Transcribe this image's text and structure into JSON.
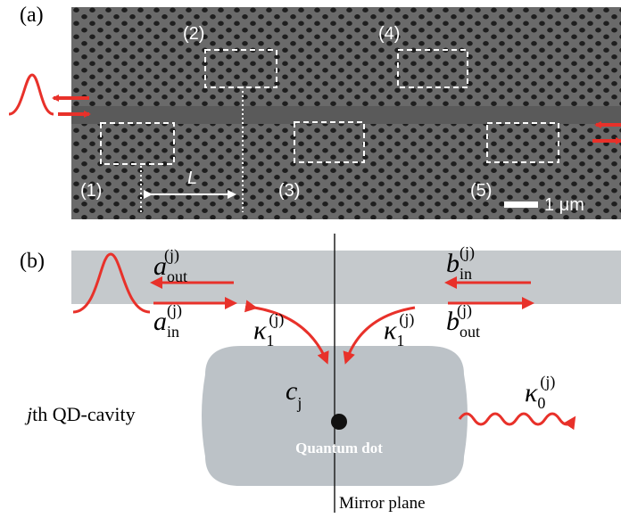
{
  "panel_a": {
    "label": "(a)",
    "regions": [
      "(1)",
      "(2)",
      "(3)",
      "(4)",
      "(5)"
    ],
    "length_label": "L",
    "scale_bar": "1 μm"
  },
  "panel_b": {
    "label": "(b)",
    "a_out": {
      "base": "a",
      "sub": "out",
      "sup": "(j)"
    },
    "a_in": {
      "base": "a",
      "sub": "in",
      "sup": "(j)"
    },
    "b_in": {
      "base": "b",
      "sub": "in",
      "sup": "(j)"
    },
    "b_out": {
      "base": "b",
      "sub": "out",
      "sup": "(j)"
    },
    "kappa1_left": {
      "base": "κ",
      "sub": "1",
      "sup": "(j)"
    },
    "kappa1_right": {
      "base": "κ",
      "sub": "1",
      "sup": "(j)"
    },
    "kappa0": {
      "base": "κ",
      "sub": "0",
      "sup": "(j)"
    },
    "cavity_mode": {
      "base": "c",
      "sub": "j"
    },
    "cavity_name": {
      "italic": "j",
      "text": "th QD-cavity"
    },
    "dot_label": "Quantum dot",
    "mirror_label": "Mirror plane"
  }
}
